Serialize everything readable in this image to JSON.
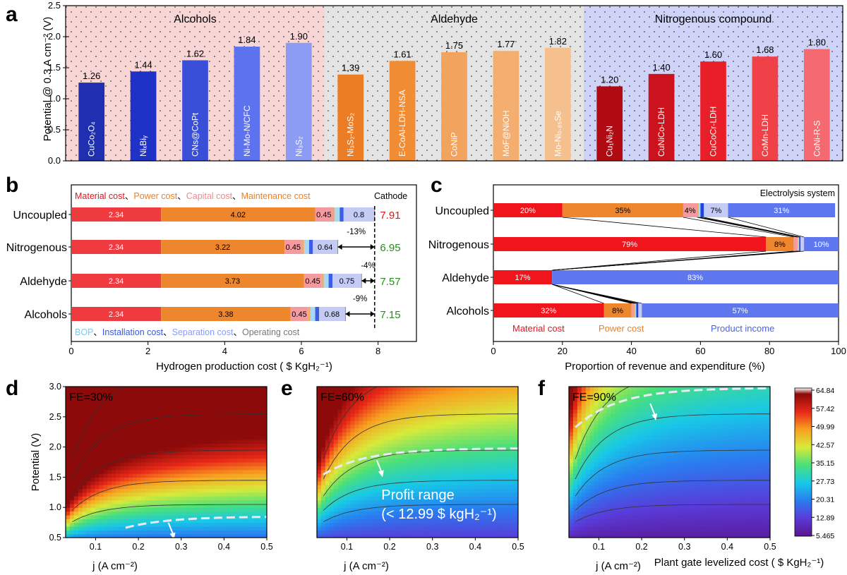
{
  "panel_letters": {
    "a": "a",
    "b": "b",
    "c": "c",
    "d": "d",
    "e": "e",
    "f": "f"
  },
  "chart_data": [
    {
      "id": "a",
      "type": "bar",
      "ylabel": "Potential @ 0.3 A cm⁻² (V)",
      "ylim": [
        0,
        2.5
      ],
      "yticks": [
        "0.0",
        "0.5",
        "1.0",
        "1.5",
        "2.0",
        "2.5"
      ],
      "groups": [
        {
          "label": "Alcohols",
          "bg": "#f9d6d6",
          "start": 0,
          "end": 4
        },
        {
          "label": "Aldehyde",
          "bg": "#e4e4e4",
          "start": 5,
          "end": 9
        },
        {
          "label": "Nitrogenous compound",
          "bg": "#cfd3f7",
          "start": 10,
          "end": 14
        }
      ],
      "bars": [
        {
          "label": "CuCo₂O₄",
          "value": 1.26,
          "value_label": "1.26",
          "color": "#1f2fb0"
        },
        {
          "label": "NiₓBiᵧ",
          "value": 1.44,
          "value_label": "1.44",
          "color": "#1f32c8"
        },
        {
          "label": "CNs@CoPt",
          "value": 1.62,
          "value_label": "1.62",
          "color": "#3a4fd8"
        },
        {
          "label": "Ni-Mo-N/CFC",
          "value": 1.84,
          "value_label": "1.84",
          "color": "#5c72ee"
        },
        {
          "label": "Ni₃S₂",
          "value": 1.9,
          "value_label": "1.90",
          "color": "#8c9bf4"
        },
        {
          "label": "Ni₃S₂-MoS₂",
          "value": 1.39,
          "value_label": "1.39",
          "color": "#ec7d24"
        },
        {
          "label": "E-CoAl-LDH-NSA",
          "value": 1.61,
          "value_label": "1.61",
          "color": "#ef8c34"
        },
        {
          "label": "CoNiP",
          "value": 1.75,
          "value_label": "1.75",
          "color": "#f2a35e"
        },
        {
          "label": "MoF@NiOH",
          "value": 1.77,
          "value_label": "1.77",
          "color": "#f3ae70"
        },
        {
          "label": "Mo-Ni₀.₈₅Se",
          "value": 1.82,
          "value_label": "1.82",
          "color": "#f6c08e"
        },
        {
          "label": "Cu₁Ni₂N",
          "value": 1.2,
          "value_label": "1.20",
          "color": "#b00b12"
        },
        {
          "label": "CuNiCo-LDH",
          "value": 1.4,
          "value_label": "1.40",
          "color": "#cc121c"
        },
        {
          "label": "CuCoCr-LDH",
          "value": 1.6,
          "value_label": "1.60",
          "color": "#e81f28"
        },
        {
          "label": "CoMn-LDH",
          "value": 1.68,
          "value_label": "1.68",
          "color": "#f04048"
        },
        {
          "label": "CoNi-R-S",
          "value": 1.8,
          "value_label": "1.80",
          "color": "#f46a70"
        }
      ]
    },
    {
      "id": "b",
      "type": "bar",
      "orientation": "horizontal-stacked",
      "xlabel": "Hydrogen production cost ( $ KgH₂⁻¹)",
      "xlim": [
        0,
        9
      ],
      "xticks": [
        "0",
        "2",
        "4",
        "6",
        "8"
      ],
      "legend_top": [
        {
          "text": "Material cost",
          "color": "#e8141c"
        },
        {
          "text": "、",
          "color": "#000"
        },
        {
          "text": "Power cost",
          "color": "#ee7f22"
        },
        {
          "text": "、",
          "color": "#000"
        },
        {
          "text": "Capital cost",
          "color": "#f2888c"
        },
        {
          "text": "、",
          "color": "#000"
        },
        {
          "text": "Maintenance cost",
          "color": "#ee7f22"
        }
      ],
      "legend_bottom": [
        {
          "text": "BOP",
          "color": "#7ec8f0"
        },
        {
          "text": "、",
          "color": "#000"
        },
        {
          "text": "Installation cost",
          "color": "#3a58e0"
        },
        {
          "text": "、",
          "color": "#000"
        },
        {
          "text": "Separation cost",
          "color": "#8b9cf2"
        },
        {
          "text": "、",
          "color": "#000"
        },
        {
          "text": "Operating cost",
          "color": "#777777"
        }
      ],
      "cathode_label": "Cathode",
      "segment_colors": [
        "#ef3a3f",
        "#ee862e",
        "#f59ba0",
        "#f3a86a",
        "#a8d8f2",
        "#3a5ee6",
        "#c4ccf6",
        "#888888"
      ],
      "rows": [
        {
          "label": "Uncoupled",
          "segments": [
            2.34,
            4.02,
            0.45,
            0.06,
            0.13,
            0.1,
            0.8,
            0.01
          ],
          "labels": [
            "2.34",
            "4.02",
            "0.45",
            "",
            "",
            "",
            "0.8",
            ""
          ],
          "total": "7.91",
          "total_color": "#e8141c"
        },
        {
          "label": "Nitrogenous",
          "segments": [
            2.34,
            3.22,
            0.45,
            0.06,
            0.13,
            0.1,
            0.64,
            0.01
          ],
          "labels": [
            "2.34",
            "3.22",
            "0.45",
            "",
            "",
            "",
            "0.64",
            ""
          ],
          "total": "6.95",
          "total_color": "#2a8c1c"
        },
        {
          "label": "Aldehyde",
          "segments": [
            2.34,
            3.73,
            0.45,
            0.06,
            0.13,
            0.1,
            0.75,
            0.01
          ],
          "labels": [
            "2.34",
            "3.73",
            "0.45",
            "",
            "",
            "",
            "0.75",
            ""
          ],
          "total": "7.57",
          "total_color": "#2a8c1c"
        },
        {
          "label": "Alcohols",
          "segments": [
            2.34,
            3.38,
            0.45,
            0.06,
            0.13,
            0.1,
            0.68,
            0.01
          ],
          "labels": [
            "2.34",
            "3.38",
            "0.45",
            "",
            "",
            "",
            "0.68",
            ""
          ],
          "total": "7.15",
          "total_color": "#2a8c1c"
        }
      ],
      "annotations": [
        "-13%",
        "-4%",
        "-9%"
      ],
      "reference_x": 7.91
    },
    {
      "id": "c",
      "type": "bar",
      "orientation": "horizontal-stacked",
      "title": "Electrolysis system",
      "xlabel": "Proportion of revenue and expenditure (%)",
      "xlim": [
        0,
        100
      ],
      "xticks": [
        "0",
        "20",
        "40",
        "60",
        "80",
        "100"
      ],
      "legend": [
        {
          "text": "Material cost",
          "color": "#e8141c"
        },
        {
          "text": "Power cost",
          "color": "#ee7f22"
        },
        {
          "text": "Product income",
          "color": "#4a62e6"
        }
      ],
      "segment_colors": [
        "#f0141c",
        "#ee862e",
        "#f59ba0",
        "#f3a86a",
        "#a8d8f2",
        "#1f42e0",
        "#c4ccf6",
        "#5f77ee"
      ],
      "rows": [
        {
          "label": "Uncoupled",
          "segments": [
            20,
            35,
            4,
            0.5,
            0.5,
            1,
            7,
            31
          ],
          "labels": [
            "20%",
            "35%",
            "4%",
            "",
            "",
            "",
            "7%",
            "31%"
          ]
        },
        {
          "label": "Nitrogenous",
          "segments": [
            79,
            8,
            1,
            0.3,
            0.3,
            0.4,
            1,
            10
          ],
          "labels": [
            "79%",
            "8%",
            "",
            "",
            "",
            "",
            "",
            "10%"
          ]
        },
        {
          "label": "Aldehyde",
          "segments": [
            17,
            0,
            0,
            0,
            0,
            0,
            0,
            83
          ],
          "labels": [
            "17%",
            "",
            "",
            "",
            "",
            "",
            "",
            "83%"
          ]
        },
        {
          "label": "Alcohols",
          "segments": [
            32,
            8,
            0.6,
            0.4,
            0.4,
            0.6,
            1,
            57
          ],
          "labels": [
            "32%",
            "8%",
            "",
            "",
            "",
            "",
            "",
            "57%"
          ]
        }
      ]
    },
    {
      "id": "d",
      "type": "heatmap",
      "annotation": "FE=30%",
      "xlabel": "j (A cm⁻²)",
      "ylabel": "Potential (V)",
      "xlim": [
        0.03,
        0.5
      ],
      "ylim": [
        0.5,
        3.0
      ],
      "xticks": [
        "0.1",
        "0.2",
        "0.3",
        "0.4",
        "0.5"
      ],
      "yticks": [
        "0.5",
        "1.0",
        "1.5",
        "2.0",
        "2.5",
        "3.0"
      ],
      "fe": 0.3,
      "profit_curve_y": 0.85
    },
    {
      "id": "e",
      "type": "heatmap",
      "annotation": "FE=60%",
      "profit_label": "Profit range",
      "profit_value": "(< 12.99 $ kgH₂⁻¹)",
      "xlabel": "j (A cm⁻²)",
      "xlim": [
        0.03,
        0.5
      ],
      "ylim": [
        0.5,
        3.0
      ],
      "xticks": [
        "0.1",
        "0.2",
        "0.3",
        "0.4",
        "0.5"
      ],
      "fe": 0.6,
      "profit_curve_y": 1.98
    },
    {
      "id": "f",
      "type": "heatmap",
      "annotation": "FE=90%",
      "xlabel": "j (A cm⁻²)",
      "xlim": [
        0.03,
        0.5
      ],
      "ylim": [
        0.5,
        3.0
      ],
      "xticks": [
        "0.1",
        "0.2",
        "0.3",
        "0.4",
        "0.5"
      ],
      "fe": 0.9,
      "profit_curve_y": 2.98,
      "colorbar": {
        "title": "Plant gate levelized cost ( $ KgH₂⁻¹)",
        "ticks": [
          "64.84",
          "57.42",
          "49.99",
          "42.57",
          "35.15",
          "27.73",
          "20.31",
          "12.89",
          "5.465"
        ]
      }
    }
  ]
}
